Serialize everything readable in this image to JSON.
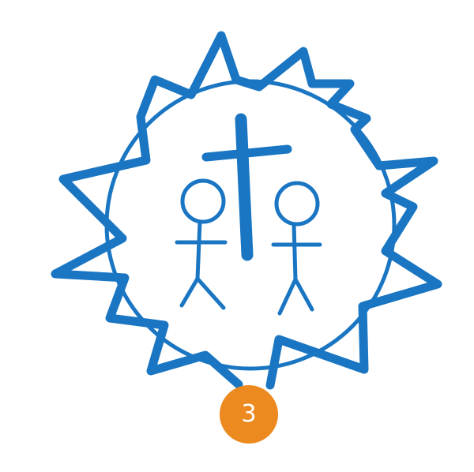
{
  "colors": {
    "stroke": "#1a76c2",
    "badge": "#ec8a1f",
    "badge_text": "#ffffff",
    "background": "#ffffff"
  },
  "icons": {
    "emblem": "sun-cross-people-icon",
    "cross": "cross-icon",
    "people": "stick-figure-icon"
  },
  "badge": {
    "label": "3"
  }
}
